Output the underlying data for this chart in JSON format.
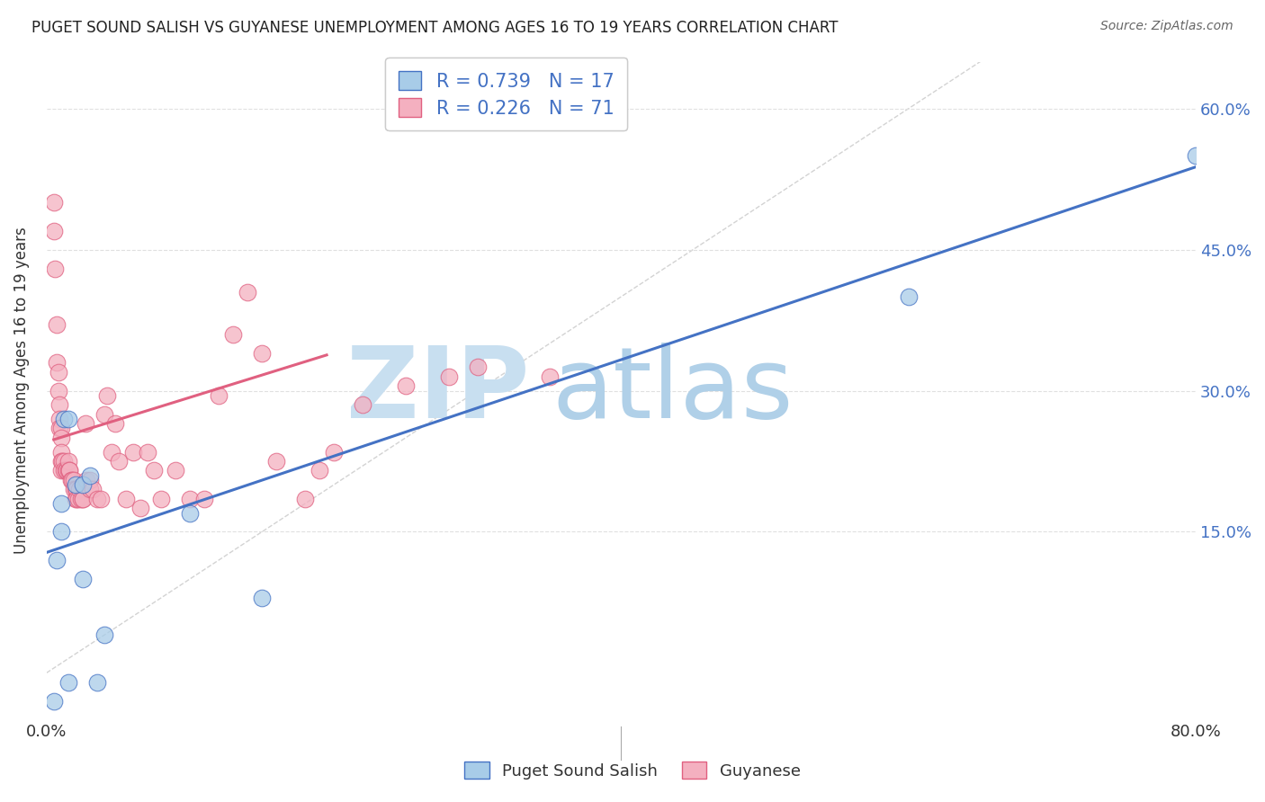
{
  "title": "PUGET SOUND SALISH VS GUYANESE UNEMPLOYMENT AMONG AGES 16 TO 19 YEARS CORRELATION CHART",
  "source": "Source: ZipAtlas.com",
  "ylabel": "Unemployment Among Ages 16 to 19 years",
  "xlim": [
    0,
    0.8
  ],
  "ylim": [
    -0.05,
    0.65
  ],
  "plot_ylim": [
    -0.05,
    0.65
  ],
  "yticks_right": [
    0.15,
    0.3,
    0.45,
    0.6
  ],
  "ytick_right_labels": [
    "15.0%",
    "30.0%",
    "45.0%",
    "60.0%"
  ],
  "legend_entries": [
    {
      "label": "R = 0.739   N = 17",
      "color": "#aec6e8"
    },
    {
      "label": "R = 0.226   N = 71",
      "color": "#f4b8c8"
    }
  ],
  "legend_bottom": [
    "Puget Sound Salish",
    "Guyanese"
  ],
  "blue_scatter_x": [
    0.005,
    0.007,
    0.01,
    0.01,
    0.012,
    0.015,
    0.015,
    0.02,
    0.025,
    0.025,
    0.03,
    0.035,
    0.04,
    0.1,
    0.15,
    0.6,
    0.8
  ],
  "blue_scatter_y": [
    -0.03,
    0.12,
    0.15,
    0.18,
    0.27,
    0.27,
    -0.01,
    0.2,
    0.2,
    0.1,
    0.21,
    -0.01,
    0.04,
    0.17,
    0.08,
    0.4,
    0.55
  ],
  "pink_scatter_x": [
    0.005,
    0.005,
    0.006,
    0.007,
    0.007,
    0.008,
    0.008,
    0.009,
    0.009,
    0.009,
    0.01,
    0.01,
    0.01,
    0.01,
    0.01,
    0.011,
    0.012,
    0.012,
    0.013,
    0.014,
    0.015,
    0.015,
    0.016,
    0.016,
    0.017,
    0.018,
    0.019,
    0.019,
    0.02,
    0.02,
    0.021,
    0.021,
    0.022,
    0.023,
    0.024,
    0.025,
    0.025,
    0.027,
    0.028,
    0.03,
    0.03,
    0.032,
    0.035,
    0.038,
    0.04,
    0.042,
    0.045,
    0.048,
    0.05,
    0.055,
    0.06,
    0.065,
    0.07,
    0.075,
    0.08,
    0.09,
    0.1,
    0.11,
    0.12,
    0.13,
    0.14,
    0.15,
    0.16,
    0.18,
    0.19,
    0.2,
    0.22,
    0.25,
    0.28,
    0.3,
    0.35
  ],
  "pink_scatter_y": [
    0.5,
    0.47,
    0.43,
    0.37,
    0.33,
    0.32,
    0.3,
    0.285,
    0.27,
    0.26,
    0.26,
    0.25,
    0.235,
    0.225,
    0.215,
    0.225,
    0.225,
    0.215,
    0.215,
    0.215,
    0.215,
    0.225,
    0.215,
    0.215,
    0.205,
    0.205,
    0.205,
    0.195,
    0.195,
    0.185,
    0.195,
    0.185,
    0.185,
    0.195,
    0.185,
    0.185,
    0.185,
    0.265,
    0.205,
    0.205,
    0.195,
    0.195,
    0.185,
    0.185,
    0.275,
    0.295,
    0.235,
    0.265,
    0.225,
    0.185,
    0.235,
    0.175,
    0.235,
    0.215,
    0.185,
    0.215,
    0.185,
    0.185,
    0.295,
    0.36,
    0.405,
    0.34,
    0.225,
    0.185,
    0.215,
    0.235,
    0.285,
    0.305,
    0.315,
    0.325,
    0.315
  ],
  "blue_line_x": [
    0.0,
    0.8
  ],
  "blue_line_y": [
    0.128,
    0.538
  ],
  "pink_line_x": [
    0.005,
    0.195
  ],
  "pink_line_y": [
    0.248,
    0.338
  ],
  "ref_line_x": [
    0.0,
    0.65
  ],
  "ref_line_y": [
    0.0,
    0.65
  ],
  "blue_scatter_color": "#a8cce8",
  "pink_scatter_color": "#f4b0c0",
  "blue_line_color": "#4472c4",
  "pink_line_color": "#e06080",
  "ref_line_color": "#c8c8c8",
  "watermark_zip_color": "#c8dff0",
  "watermark_atlas_color": "#b0d0e8",
  "title_color": "#222222",
  "source_color": "#666666",
  "axis_label_color": "#333333",
  "right_tick_color": "#4472c4",
  "background_color": "#ffffff",
  "grid_color": "#e0e0e0"
}
